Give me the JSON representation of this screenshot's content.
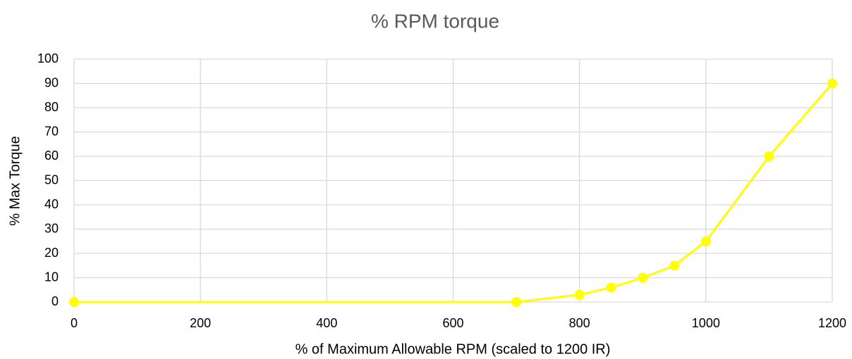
{
  "chart_data": {
    "type": "line",
    "title": "% RPM torque",
    "x_label": "% of Maximum Allowable RPM (scaled to 1200 IR)",
    "y_label": "% Max Torque",
    "x": [
      0,
      700,
      800,
      850,
      900,
      950,
      1000,
      1100,
      1200
    ],
    "series": [
      {
        "name": "% Max Torque",
        "color": "#ffff00",
        "values": [
          0,
          0,
          3,
          6,
          10,
          15,
          25,
          60,
          90
        ]
      }
    ],
    "xlim": [
      0,
      1200
    ],
    "xticks": [
      0,
      200,
      400,
      600,
      800,
      1000,
      1200
    ],
    "ylim": [
      0,
      100
    ],
    "yticks": [
      0,
      10,
      20,
      30,
      40,
      50,
      60,
      70,
      80,
      90,
      100
    ],
    "grid": true
  }
}
